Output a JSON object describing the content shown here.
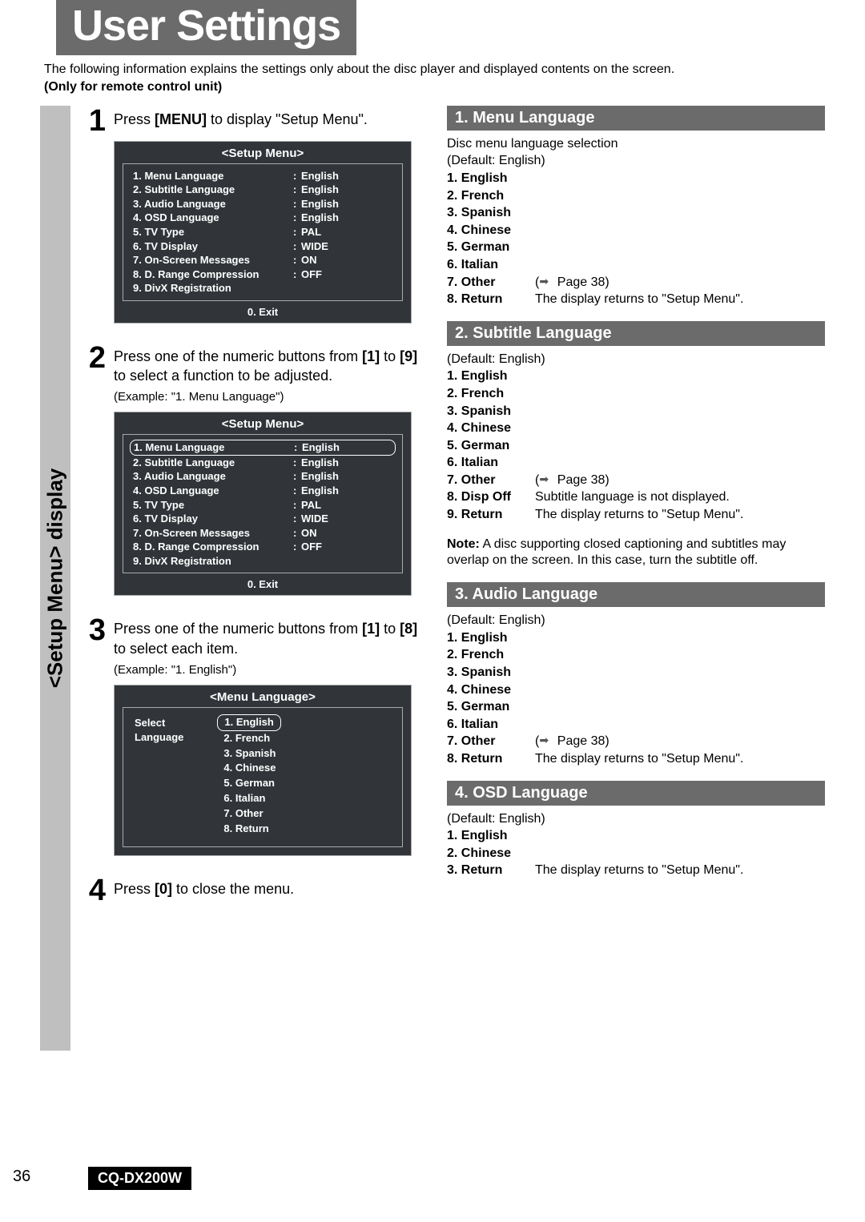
{
  "page_number": "36",
  "model": "CQ-DX200W",
  "title": "User Settings",
  "intro": "The following information explains the settings only about the disc player and displayed contents on the screen.",
  "intro_bold": "(Only for remote control unit)",
  "sidebar_label": "<Setup Menu> display",
  "colors": {
    "banner_bg": "#6b6b6b",
    "vbar_bg": "#bfbfbf",
    "menu_bg": "#31353a",
    "model_bg": "#000000"
  },
  "steps": {
    "s1": {
      "num": "1",
      "text_a": "Press ",
      "text_b": "[MENU]",
      "text_c": " to display \"Setup Menu\"."
    },
    "s2": {
      "num": "2",
      "text_a": "Press one of the numeric buttons from ",
      "text_b": "[1]",
      "text_c": " to ",
      "text_d": "[9]",
      "text_e": " to select a function to be adjusted.",
      "example": "(Example: \"1. Menu Language\")"
    },
    "s3": {
      "num": "3",
      "text_a": "Press one of the numeric buttons from ",
      "text_b": "[1]",
      "text_c": " to ",
      "text_d": "[8]",
      "text_e": " to select each item.",
      "example": "(Example: \"1. English\")"
    },
    "s4": {
      "num": "4",
      "text_a": "Press ",
      "text_b": "[0]",
      "text_c": " to close the menu."
    }
  },
  "setup_menu": {
    "title": "<Setup Menu>",
    "rows": [
      {
        "label": "1. Menu Language",
        "value": "English"
      },
      {
        "label": "2. Subtitle Language",
        "value": "English"
      },
      {
        "label": "3. Audio Language",
        "value": "English"
      },
      {
        "label": "4. OSD Language",
        "value": "English"
      },
      {
        "label": "5. TV Type",
        "value": "PAL"
      },
      {
        "label": "6. TV Display",
        "value": "WIDE"
      },
      {
        "label": "7. On-Screen Messages",
        "value": "ON"
      },
      {
        "label": "8. D. Range Compression",
        "value": "OFF"
      },
      {
        "label": "9. DivX Registration",
        "value": ""
      }
    ],
    "footer": "0. Exit"
  },
  "lang_menu": {
    "title": "<Menu Language>",
    "left1": "Select",
    "left2": "Language",
    "items": [
      "1. English",
      "2. French",
      "3. Spanish",
      "4. Chinese",
      "5. German",
      "6. Italian",
      "7. Other",
      "8. Return"
    ]
  },
  "sections": {
    "menu_lang": {
      "header": "1. Menu Language",
      "desc1": "Disc menu language selection",
      "desc2": "(Default: English)",
      "opts": [
        {
          "label": "1. English",
          "desc": ""
        },
        {
          "label": "2. French",
          "desc": ""
        },
        {
          "label": "3. Spanish",
          "desc": ""
        },
        {
          "label": "4. Chinese",
          "desc": ""
        },
        {
          "label": "5. German",
          "desc": ""
        },
        {
          "label": "6. Italian",
          "desc": ""
        },
        {
          "label": "7. Other",
          "desc": "Page 38",
          "arrow": true
        },
        {
          "label": "8. Return",
          "desc": "The display returns to \"Setup Menu\"."
        }
      ]
    },
    "subtitle_lang": {
      "header": "2. Subtitle Language",
      "desc1": "(Default: English)",
      "opts": [
        {
          "label": "1. English",
          "desc": ""
        },
        {
          "label": "2. French",
          "desc": ""
        },
        {
          "label": "3. Spanish",
          "desc": ""
        },
        {
          "label": "4. Chinese",
          "desc": ""
        },
        {
          "label": "5. German",
          "desc": ""
        },
        {
          "label": "6. Italian",
          "desc": ""
        },
        {
          "label": "7. Other",
          "desc": "Page 38",
          "arrow": true
        },
        {
          "label": "8. Disp Off",
          "desc": "Subtitle language is not displayed."
        },
        {
          "label": "9. Return",
          "desc": "The display returns to \"Setup Menu\"."
        }
      ],
      "note_label": "Note:",
      "note": " A disc supporting closed captioning and subtitles may overlap on the screen. In this case, turn the subtitle off."
    },
    "audio_lang": {
      "header": "3. Audio Language",
      "desc1": "(Default: English)",
      "opts": [
        {
          "label": "1. English",
          "desc": ""
        },
        {
          "label": "2. French",
          "desc": ""
        },
        {
          "label": "3. Spanish",
          "desc": ""
        },
        {
          "label": "4. Chinese",
          "desc": ""
        },
        {
          "label": "5. German",
          "desc": ""
        },
        {
          "label": "6. Italian",
          "desc": ""
        },
        {
          "label": "7. Other",
          "desc": "Page 38",
          "arrow": true
        },
        {
          "label": "8. Return",
          "desc": "The display returns to \"Setup Menu\"."
        }
      ]
    },
    "osd_lang": {
      "header": "4. OSD Language",
      "desc1": "(Default: English)",
      "opts": [
        {
          "label": "1. English",
          "desc": ""
        },
        {
          "label": "2. Chinese",
          "desc": ""
        },
        {
          "label": "3. Return",
          "desc": "The display returns to \"Setup Menu\"."
        }
      ]
    }
  }
}
